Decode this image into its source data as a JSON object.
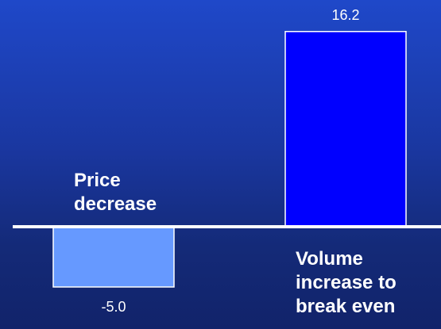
{
  "chart_data": {
    "type": "bar",
    "categories": [
      "Price decrease",
      "Volume increase to break even"
    ],
    "category_labels": [
      "Price\ndecrease",
      "Volume\nincrease to\nbreak even"
    ],
    "values": [
      -5.0,
      16.2
    ],
    "value_labels": [
      "-5.0",
      "16.2"
    ],
    "bar_colors": [
      "#6699ff",
      "#0000ff"
    ],
    "baseline_color": "#ffffff",
    "label_color": "#ffffff",
    "ylim": [
      -5.5,
      17.5
    ],
    "grid": false,
    "legend": "none"
  }
}
